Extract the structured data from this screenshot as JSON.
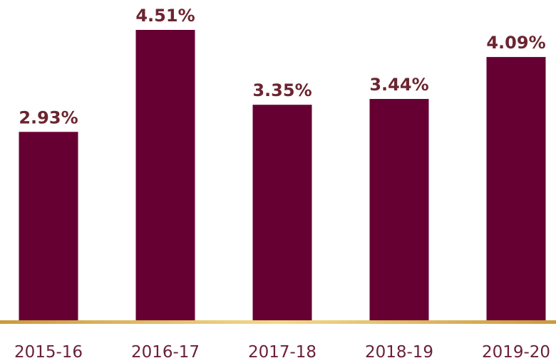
{
  "chart_data": {
    "type": "bar",
    "categories": [
      "2015-16",
      "2016-17",
      "2017-18",
      "2018-19",
      "2019-20"
    ],
    "values": [
      2.93,
      4.51,
      3.35,
      3.44,
      4.09
    ],
    "value_labels": [
      "2.93%",
      "4.51%",
      "3.35%",
      "3.44%",
      "4.09%"
    ],
    "color": "#660033",
    "label_color": "#6b2530",
    "category_color": "#6a1f3c"
  }
}
